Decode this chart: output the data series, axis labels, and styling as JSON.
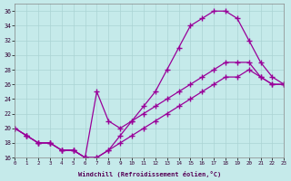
{
  "xlabel": "Windchill (Refroidissement éolien,°C)",
  "xlim": [
    0,
    23
  ],
  "ylim": [
    16,
    37
  ],
  "xticks": [
    0,
    1,
    2,
    3,
    4,
    5,
    6,
    7,
    8,
    9,
    10,
    11,
    12,
    13,
    14,
    15,
    16,
    17,
    18,
    19,
    20,
    21,
    22,
    23
  ],
  "yticks": [
    16,
    18,
    20,
    22,
    24,
    26,
    28,
    30,
    32,
    34,
    36
  ],
  "bg": "#c5eaea",
  "grid_color": "#aad4d4",
  "line_color": "#990099",
  "lines": [
    {
      "x": [
        0,
        1,
        2,
        3,
        4,
        5,
        6,
        7,
        8,
        9,
        10,
        11,
        12,
        13,
        14,
        15,
        16,
        17,
        18,
        19,
        20,
        21,
        22,
        23
      ],
      "y": [
        20,
        19,
        18,
        18,
        17,
        17,
        16,
        16,
        17,
        19,
        21,
        23,
        25,
        28,
        31,
        34,
        35,
        36,
        36,
        35,
        32,
        29,
        27,
        26
      ]
    },
    {
      "x": [
        0,
        1,
        2,
        3,
        4,
        5,
        6,
        7,
        8,
        9,
        10,
        11,
        12,
        13,
        14,
        15,
        16,
        17,
        18,
        19,
        20,
        21,
        22,
        23
      ],
      "y": [
        20,
        19,
        18,
        18,
        17,
        17,
        16,
        25,
        21,
        20,
        21,
        22,
        23,
        24,
        25,
        26,
        27,
        28,
        29,
        29,
        29,
        27,
        26,
        26
      ]
    },
    {
      "x": [
        0,
        1,
        2,
        3,
        4,
        5,
        6,
        7,
        8,
        9,
        10,
        11,
        12,
        13,
        14,
        15,
        16,
        17,
        18,
        19,
        20,
        21,
        22,
        23
      ],
      "y": [
        20,
        19,
        18,
        18,
        17,
        17,
        16,
        16,
        17,
        18,
        19,
        20,
        21,
        22,
        23,
        24,
        25,
        26,
        27,
        27,
        28,
        27,
        26,
        26
      ]
    }
  ]
}
